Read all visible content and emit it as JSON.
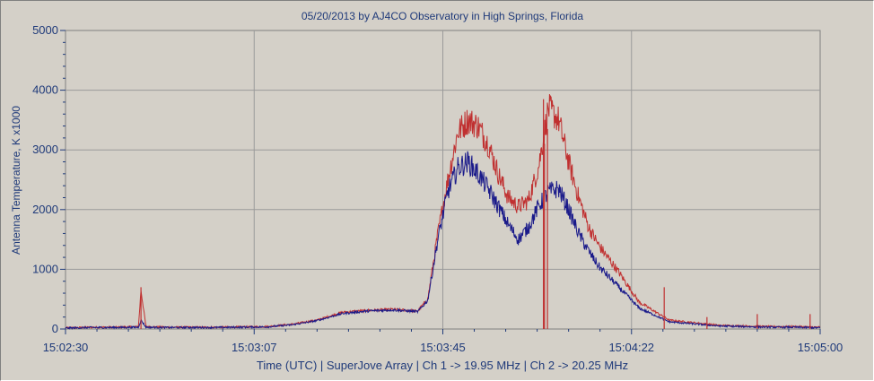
{
  "chart_data": {
    "type": "line",
    "title": "05/20/2013  by  AJ4CO Observatory  in  High Springs, Florida",
    "xlabel": "Time (UTC)  |  SuperJove Array  |  Ch 1 -> 19.95 MHz  |  Ch 2 -> 20.25 MHz",
    "ylabel": "Antenna Temperature, K x1000",
    "x_tick_labels": [
      "15:02:30",
      "15:03:07",
      "15:03:45",
      "15:04:22",
      "15:05:00"
    ],
    "y_tick_labels": [
      "0",
      "1000",
      "2000",
      "3000",
      "4000",
      "5000"
    ],
    "ylim": [
      0,
      5000
    ],
    "xlim_seconds": [
      0,
      150
    ],
    "grid": true,
    "series": [
      {
        "color": "#c03030",
        "x": [
          0,
          5,
          10,
          14.5,
          15,
          16,
          20,
          30,
          40,
          45,
          50,
          55,
          60,
          65,
          70,
          72,
          74,
          76,
          78,
          80,
          82,
          84,
          86,
          88,
          90,
          92,
          94,
          96,
          98,
          100,
          102,
          104,
          106,
          110,
          114,
          120,
          130,
          140,
          145,
          150
        ],
        "y": [
          20,
          30,
          30,
          40,
          650,
          40,
          30,
          30,
          40,
          80,
          150,
          280,
          310,
          330,
          300,
          500,
          1600,
          2500,
          3300,
          3500,
          3400,
          3100,
          2600,
          2200,
          2050,
          2150,
          2700,
          3700,
          3500,
          2800,
          2200,
          1700,
          1400,
          950,
          450,
          150,
          60,
          40,
          40,
          30
        ]
      },
      {
        "color": "#1a1a8a",
        "x": [
          0,
          5,
          10,
          14.5,
          15,
          16,
          20,
          30,
          40,
          45,
          50,
          55,
          60,
          65,
          70,
          72,
          74,
          76,
          78,
          80,
          82,
          84,
          86,
          88,
          90,
          92,
          94,
          96,
          98,
          100,
          102,
          104,
          106,
          110,
          114,
          120,
          130,
          140,
          145,
          150
        ],
        "y": [
          15,
          25,
          25,
          30,
          150,
          30,
          25,
          25,
          35,
          70,
          140,
          260,
          300,
          320,
          290,
          480,
          1500,
          2300,
          2700,
          2800,
          2600,
          2350,
          2050,
          1750,
          1500,
          1700,
          2050,
          2300,
          2350,
          2000,
          1600,
          1300,
          1050,
          700,
          350,
          120,
          50,
          30,
          30,
          20
        ]
      }
    ],
    "spikes": [
      {
        "x": 15,
        "y": 700
      },
      {
        "x": 95,
        "y": 3850
      },
      {
        "x": 95.8,
        "y": 3350
      },
      {
        "x": 95.2,
        "y": 3100
      },
      {
        "x": 119,
        "y": 700
      },
      {
        "x": 127.5,
        "y": 200
      },
      {
        "x": 137.5,
        "y": 250
      },
      {
        "x": 148,
        "y": 250
      }
    ]
  }
}
